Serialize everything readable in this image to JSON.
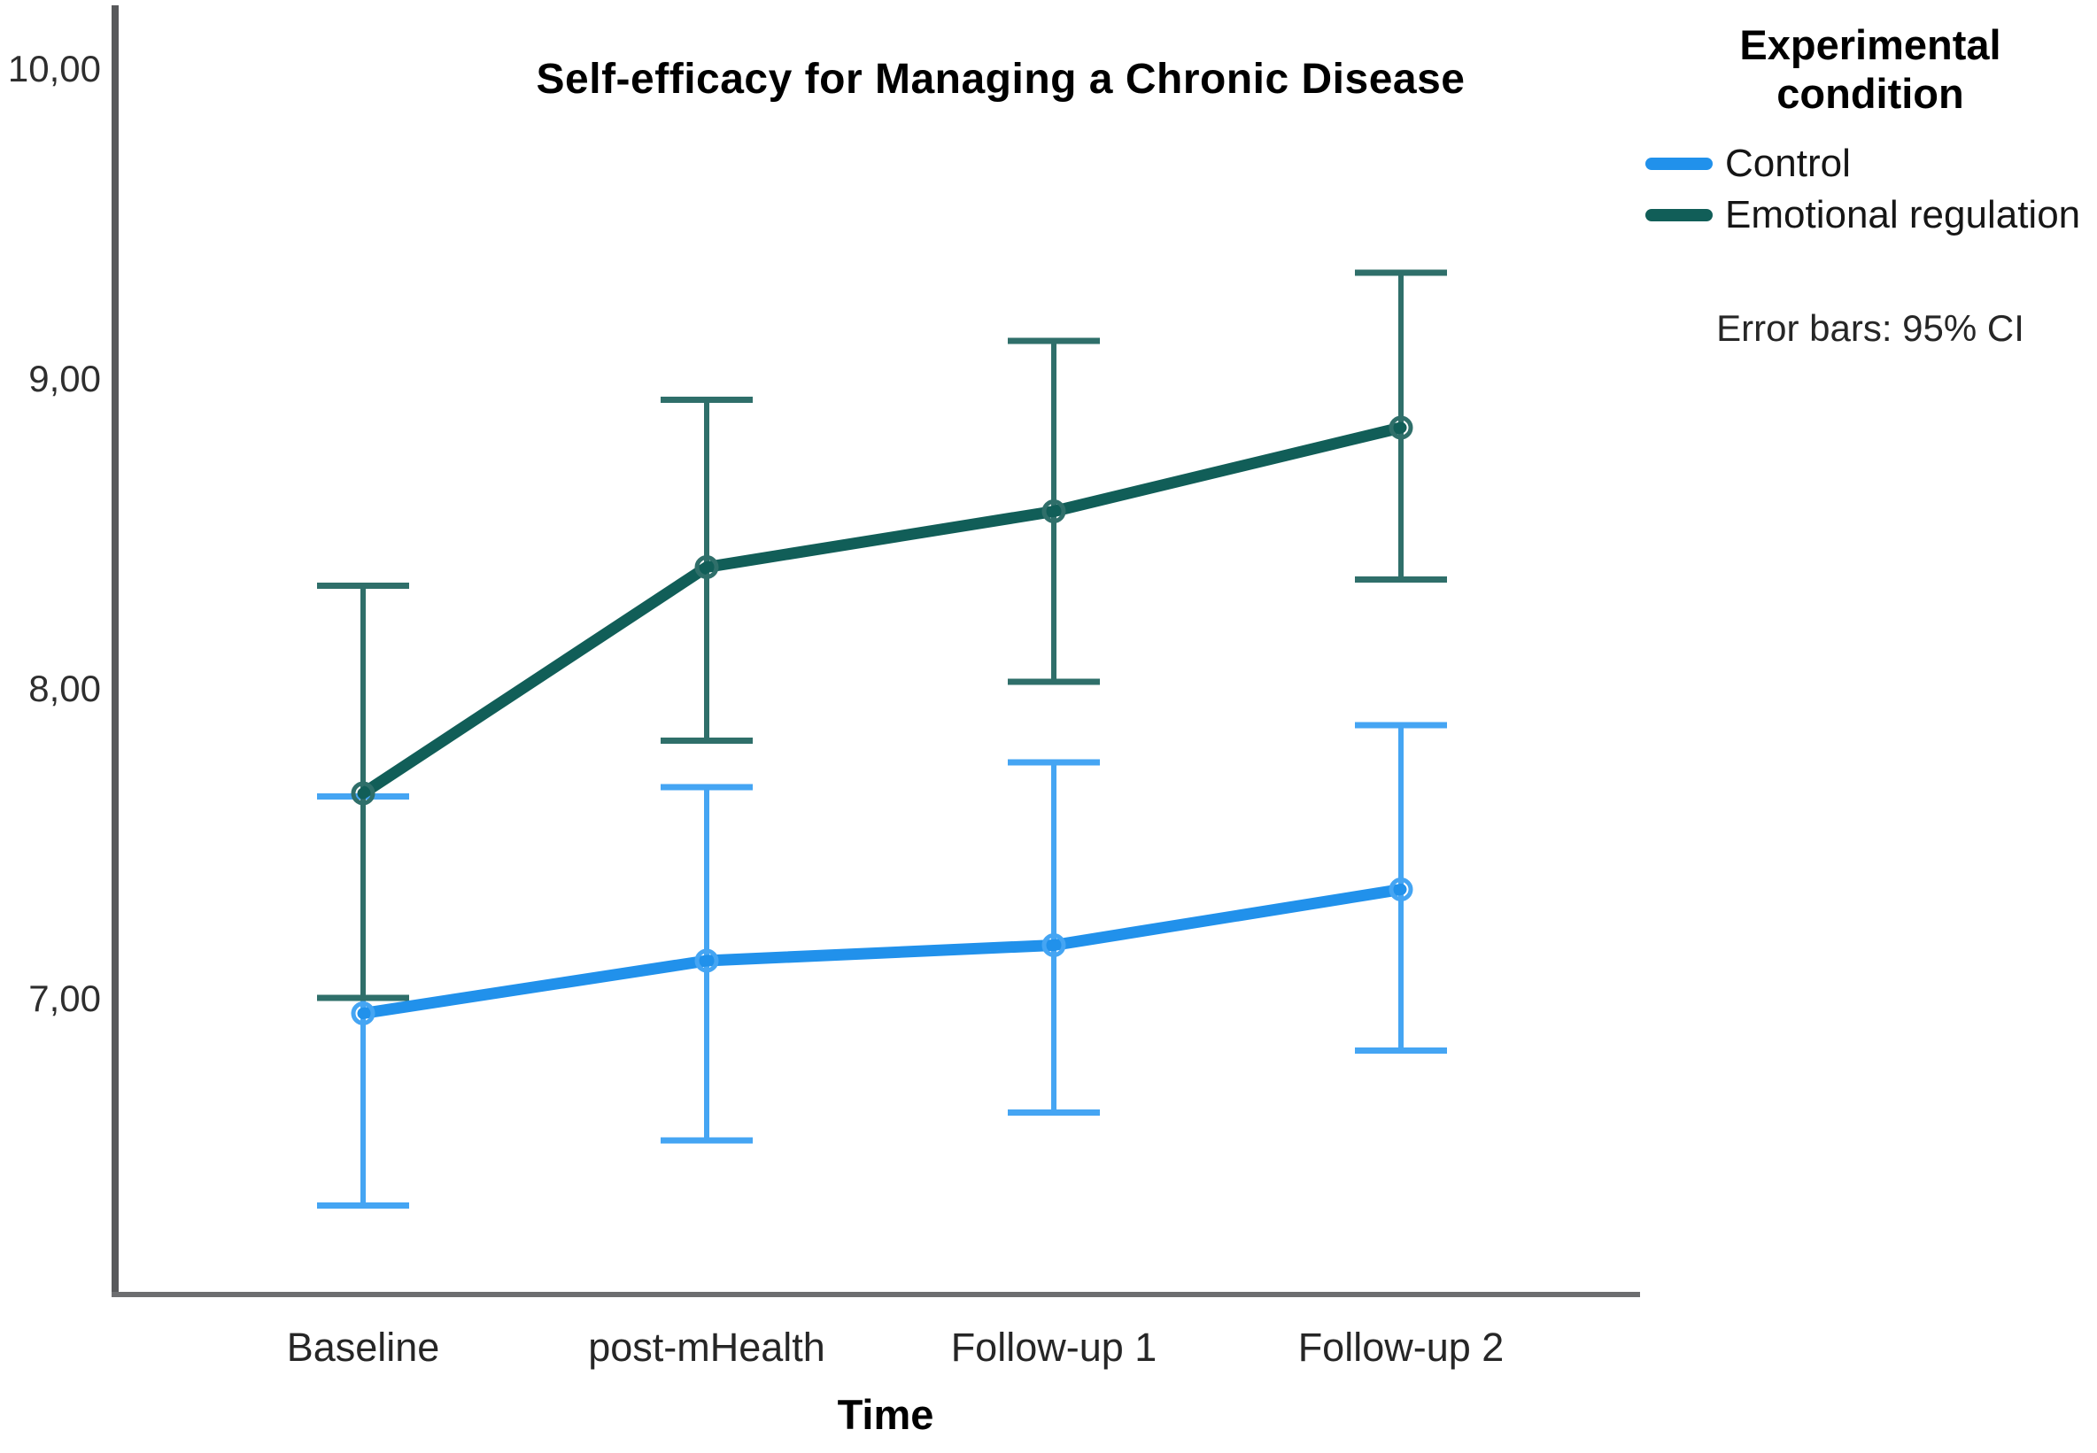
{
  "figure": {
    "background": "#ffffff",
    "axis_line_color": "#58595b",
    "bottom_axis_color": "#6d6e70"
  },
  "chart_data": {
    "type": "line",
    "title": "Self-efficacy for Managing a Chronic Disease",
    "xlabel": "Time",
    "ylabel": "",
    "legend_title": "Experimental condition",
    "error_note": "Error bars: 95% CI",
    "legend_position": "top-right",
    "grid": false,
    "categories": [
      "Baseline",
      "post-mHealth",
      "Follow-up 1",
      "Follow-up 2"
    ],
    "y_ticks": [
      {
        "label": "10,00",
        "value": 10.0
      },
      {
        "label": "9,00",
        "value": 9.0
      },
      {
        "label": "8,00",
        "value": 8.0
      },
      {
        "label": "7,00",
        "value": 7.0
      }
    ],
    "ylim": [
      6.05,
      10.2
    ],
    "series": [
      {
        "name": "Control",
        "line_color": "#2191eb",
        "error_bar_color": "#45a5f3",
        "marker": "open-circle",
        "means": [
          6.95,
          7.12,
          7.17,
          7.35
        ],
        "ci_upper": [
          7.65,
          7.68,
          7.76,
          7.88
        ],
        "ci_lower": [
          6.33,
          6.54,
          6.63,
          6.83
        ]
      },
      {
        "name": "Emotional regulation",
        "line_color": "#115e58",
        "error_bar_color": "#2f6f6a",
        "marker": "open-circle",
        "means": [
          7.66,
          8.39,
          8.57,
          8.84
        ],
        "ci_upper": [
          8.33,
          8.93,
          9.12,
          9.34
        ],
        "ci_lower": [
          7.0,
          7.83,
          8.02,
          8.35
        ]
      }
    ]
  }
}
